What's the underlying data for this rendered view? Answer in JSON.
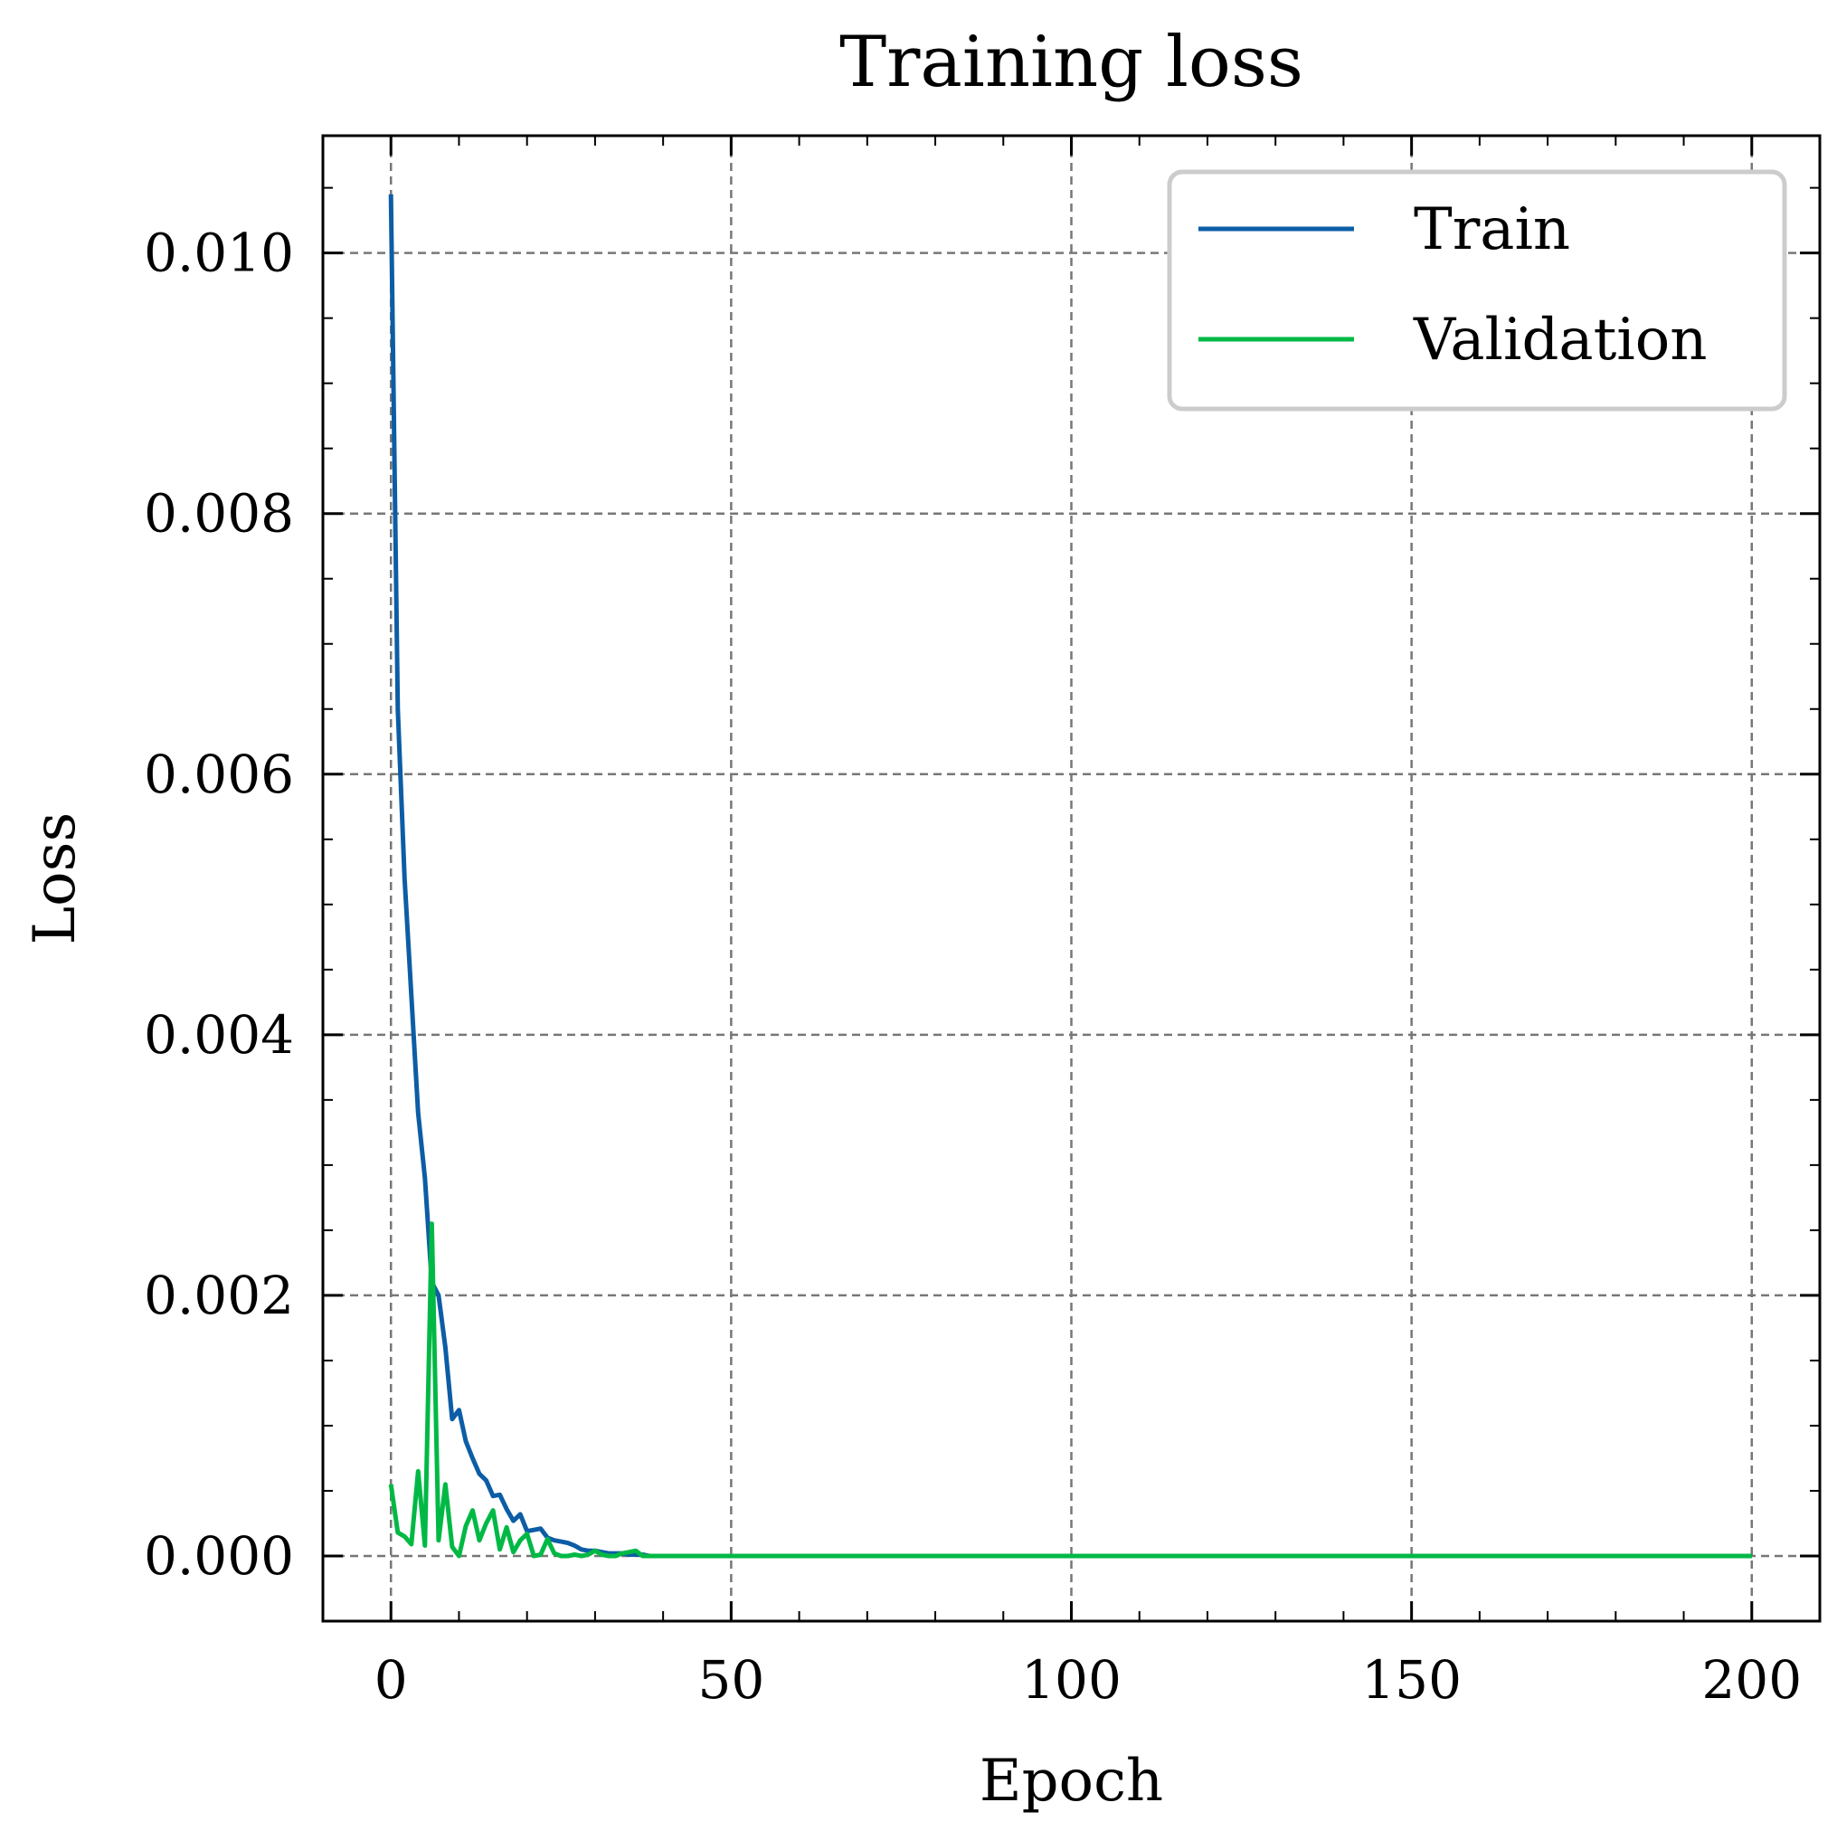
{
  "chart_data": {
    "type": "line",
    "title": "Training loss",
    "xlabel": "Epoch",
    "ylabel": "Loss",
    "xlim": [
      -10,
      210
    ],
    "ylim": [
      -0.0005,
      0.0109
    ],
    "xticks": [
      0,
      50,
      100,
      150,
      200
    ],
    "xtick_labels": [
      "0",
      "50",
      "100",
      "150",
      "200"
    ],
    "yticks": [
      0.0,
      0.002,
      0.004,
      0.006,
      0.008,
      0.01
    ],
    "ytick_labels": [
      "0.000",
      "0.002",
      "0.004",
      "0.006",
      "0.008",
      "0.010"
    ],
    "grid": true,
    "legend_position": "top-right",
    "series": [
      {
        "name": "Train",
        "color": "#0C5DA5",
        "x": [
          0,
          1,
          2,
          3,
          4,
          5,
          6,
          7,
          8,
          9,
          10,
          11,
          12,
          13,
          14,
          15,
          16,
          17,
          18,
          19,
          20,
          21,
          22,
          23,
          24,
          25,
          26,
          27,
          28,
          29,
          30,
          31,
          32,
          33,
          34,
          35,
          36,
          37,
          38,
          39,
          40,
          45,
          50,
          60,
          80,
          100,
          150,
          200
        ],
        "y": [
          0.01045,
          0.0065,
          0.0052,
          0.0043,
          0.0034,
          0.0029,
          0.0021,
          0.002,
          0.0016,
          0.00105,
          0.00112,
          0.00088,
          0.00075,
          0.00063,
          0.00058,
          0.00046,
          0.00047,
          0.00036,
          0.00027,
          0.00032,
          0.00019,
          0.0002,
          0.00021,
          0.00014,
          0.00012,
          0.00011,
          0.0001,
          8e-05,
          5e-05,
          4e-05,
          4e-05,
          3e-05,
          2e-05,
          2e-05,
          2e-05,
          1e-05,
          1e-05,
          1e-05,
          0.0,
          0.0,
          0.0,
          0.0,
          0.0,
          0.0,
          0.0,
          0.0,
          0.0,
          0.0
        ]
      },
      {
        "name": "Validation",
        "color": "#00B945",
        "x": [
          0,
          1,
          2,
          3,
          4,
          5,
          6,
          7,
          8,
          9,
          10,
          11,
          12,
          13,
          14,
          15,
          16,
          17,
          18,
          19,
          20,
          21,
          22,
          23,
          24,
          25,
          26,
          27,
          28,
          29,
          30,
          31,
          32,
          33,
          34,
          35,
          36,
          37,
          38,
          40,
          50,
          100,
          150,
          200
        ],
        "y": [
          0.00055,
          0.00018,
          0.00015,
          9e-05,
          0.00065,
          8e-05,
          0.00255,
          0.00012,
          0.00055,
          7e-05,
          0.0,
          0.00023,
          0.00035,
          0.00012,
          0.00025,
          0.00035,
          5e-05,
          0.00022,
          3e-05,
          0.00012,
          0.00017,
          0.0,
          1e-05,
          0.00013,
          2e-05,
          0.0,
          0.0,
          1e-05,
          0.0,
          1e-05,
          4e-05,
          1e-05,
          0.0,
          0.0,
          2e-05,
          3e-05,
          4e-05,
          0.0,
          0.0,
          0.0,
          0.0,
          0.0,
          0.0,
          0.0
        ]
      }
    ]
  }
}
